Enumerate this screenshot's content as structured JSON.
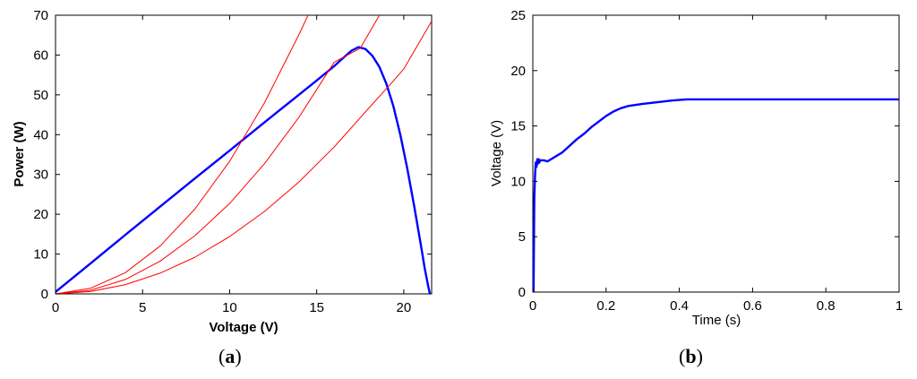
{
  "chart_data": [
    {
      "type": "line",
      "caption_open": "(",
      "caption_letter": "a",
      "caption_close": ")",
      "xlabel": "Voltage (V)",
      "ylabel": "Power (W)",
      "xlim": [
        0,
        21.6
      ],
      "ylim": [
        0,
        70
      ],
      "xticks": [
        0,
        5,
        10,
        15,
        20
      ],
      "yticks": [
        0,
        10,
        20,
        30,
        40,
        50,
        60,
        70
      ],
      "grid": false,
      "series": [
        {
          "color": "#0000ff",
          "x": [
            0,
            2,
            4,
            6,
            8,
            10,
            12,
            14,
            15,
            16,
            16.5,
            17,
            17.4,
            17.8,
            18.2,
            18.6,
            19,
            19.4,
            19.8,
            20.2,
            20.6,
            21,
            21.2,
            21.4,
            21.5
          ],
          "y": [
            0.5,
            7.6,
            14.8,
            21.9,
            29.0,
            36.0,
            43.1,
            50.1,
            53.6,
            57.2,
            59.2,
            61.1,
            62.0,
            61.5,
            59.8,
            57.0,
            52.8,
            47.2,
            40.0,
            31.5,
            22.0,
            11.8,
            6.5,
            2.0,
            0
          ]
        },
        {
          "color": "#ff0000",
          "x": [
            0,
            2,
            4,
            6,
            8,
            10,
            12,
            14,
            14.5
          ],
          "y": [
            0,
            1.4,
            5.3,
            12.0,
            21.3,
            33.3,
            48.0,
            65.3,
            70.0
          ]
        },
        {
          "color": "#ff0000",
          "x": [
            0,
            2,
            4,
            6,
            8,
            10,
            12,
            14,
            16,
            17.5,
            18.6
          ],
          "y": [
            0,
            0.9,
            3.6,
            8.2,
            14.6,
            22.7,
            32.7,
            44.5,
            58.2,
            61.7,
            70.0
          ]
        },
        {
          "color": "#ff0000",
          "x": [
            0,
            2,
            4,
            6,
            8,
            10,
            12,
            14,
            16,
            18,
            19.3,
            20,
            21.6
          ],
          "y": [
            0,
            0.6,
            2.3,
            5.2,
            9.2,
            14.4,
            20.7,
            28.2,
            36.9,
            46.7,
            53.0,
            56.5,
            68.5
          ]
        }
      ]
    },
    {
      "type": "line",
      "caption_open": "(",
      "caption_letter": "b",
      "caption_close": ")",
      "xlabel": "Time (s)",
      "ylabel": "Voltage (V)",
      "xlim": [
        0,
        1
      ],
      "ylim": [
        0,
        25
      ],
      "xticks": [
        0,
        0.2,
        0.4,
        0.6,
        0.8,
        1
      ],
      "xtick_labels": [
        "0",
        "0.2",
        "0.4",
        "0.6",
        "0.8",
        "1"
      ],
      "yticks": [
        0,
        5,
        10,
        15,
        20,
        25
      ],
      "grid": false,
      "series": [
        {
          "color": "#0000ff",
          "x": [
            0,
            0.002,
            0.004,
            0.006,
            0.008,
            0.01,
            0.012,
            0.014,
            0.016,
            0.018,
            0.02,
            0.03,
            0.04,
            0.06,
            0.08,
            0.1,
            0.12,
            0.14,
            0.16,
            0.18,
            0.2,
            0.22,
            0.24,
            0.26,
            0.3,
            0.34,
            0.38,
            0.42,
            0.5,
            0.6,
            0.7,
            0.8,
            0.9,
            1.0
          ],
          "y": [
            0,
            0,
            8.5,
            10.5,
            11.7,
            11.3,
            12.0,
            11.6,
            12.0,
            11.7,
            11.9,
            11.9,
            11.8,
            12.2,
            12.6,
            13.2,
            13.8,
            14.3,
            14.9,
            15.4,
            15.9,
            16.3,
            16.6,
            16.8,
            17.0,
            17.15,
            17.3,
            17.4,
            17.4,
            17.4,
            17.4,
            17.4,
            17.4,
            17.4
          ]
        }
      ]
    }
  ]
}
